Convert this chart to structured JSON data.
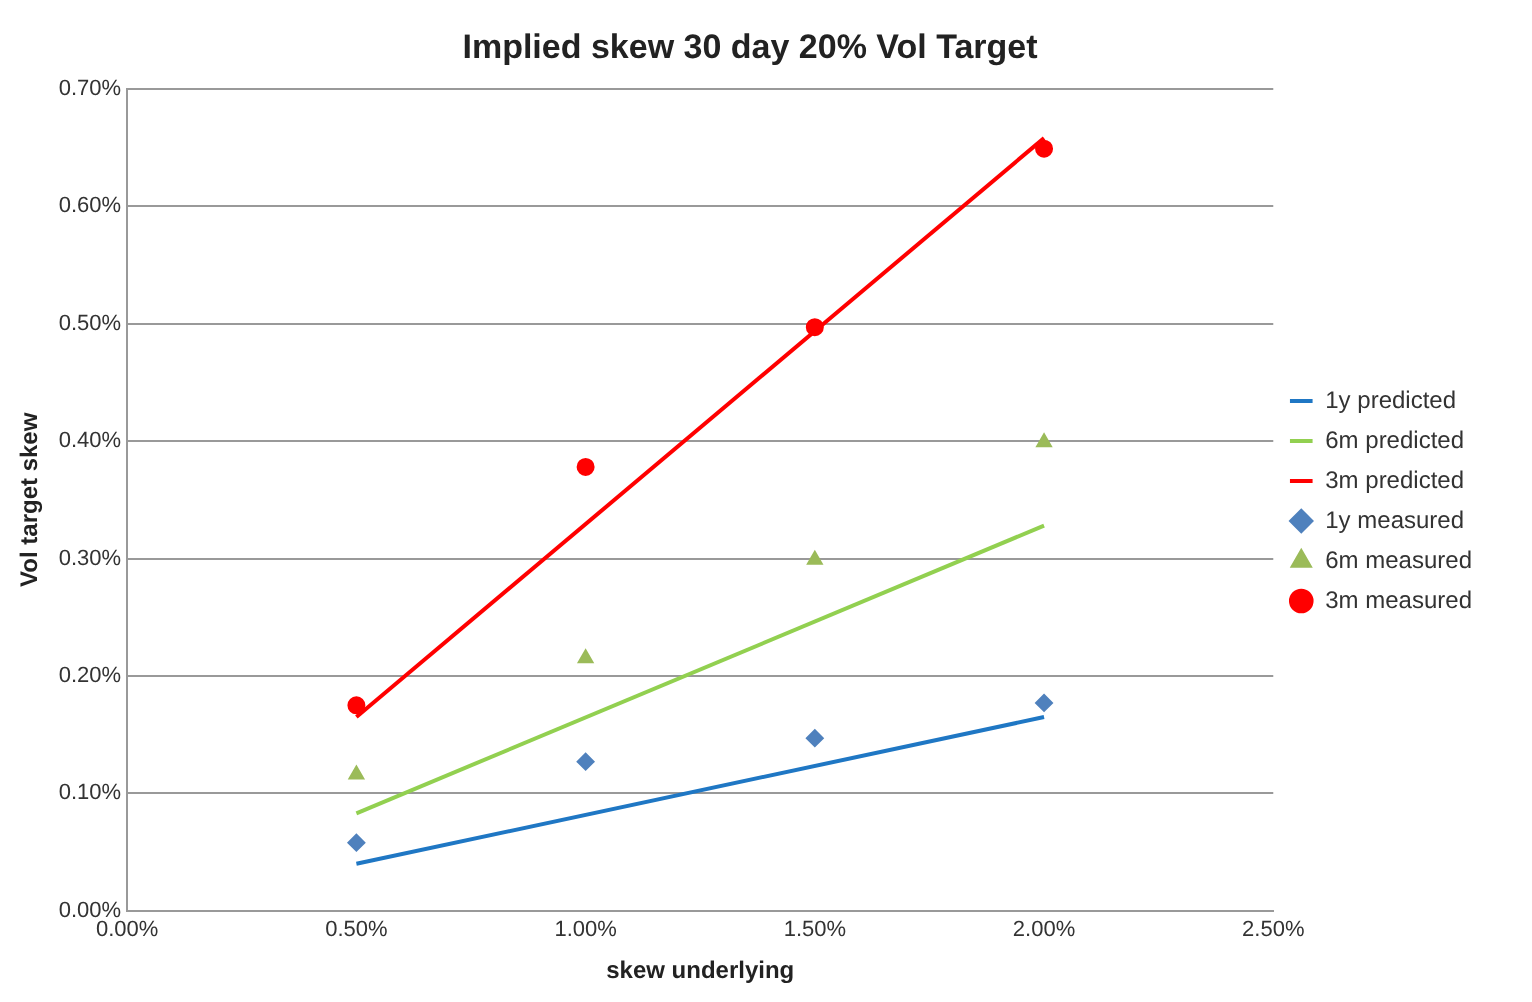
{
  "chart_data": {
    "type": "scatter",
    "title": "Implied skew 30 day 20% Vol Target",
    "xlabel": "skew underlying",
    "ylabel": "Vol target skew",
    "xlim": [
      0,
      2.5
    ],
    "xticks": [
      {
        "value": 0,
        "label": "0.00%"
      },
      {
        "value": 0.5,
        "label": "0.50%"
      },
      {
        "value": 1,
        "label": "1.00%"
      },
      {
        "value": 1.5,
        "label": "1.50%"
      },
      {
        "value": 2,
        "label": "2.00%"
      },
      {
        "value": 2.5,
        "label": "2.50%"
      }
    ],
    "ylim": [
      0,
      0.7
    ],
    "yticks": [
      {
        "value": 0,
        "label": "0.00%"
      },
      {
        "value": 0.1,
        "label": "0.10%"
      },
      {
        "value": 0.2,
        "label": "0.20%"
      },
      {
        "value": 0.3,
        "label": "0.30%"
      },
      {
        "value": 0.4,
        "label": "0.40%"
      },
      {
        "value": 0.5,
        "label": "0.50%"
      },
      {
        "value": 0.6,
        "label": "0.60%"
      },
      {
        "value": 0.7,
        "label": "0.70%"
      }
    ],
    "grid": "y",
    "legend": "right",
    "series": [
      {
        "name": "1y predicted",
        "type": "line",
        "color": "#1f77c4",
        "x": [
          0.5,
          2.0
        ],
        "values": [
          0.04,
          0.165
        ]
      },
      {
        "name": "6m predicted",
        "type": "line",
        "color": "#92d050",
        "x": [
          0.5,
          2.0
        ],
        "values": [
          0.083,
          0.328
        ]
      },
      {
        "name": "3m predicted",
        "type": "line",
        "color": "#ff0000",
        "x": [
          0.5,
          2.0
        ],
        "values": [
          0.165,
          0.658
        ]
      },
      {
        "name": "1y measured",
        "type": "scatter",
        "marker": "diamond",
        "color": "#4f81bd",
        "x": [
          0.5,
          1.0,
          1.5,
          2.0
        ],
        "values": [
          0.058,
          0.127,
          0.147,
          0.177
        ]
      },
      {
        "name": "6m measured",
        "type": "scatter",
        "marker": "triangle",
        "color": "#9bbb59",
        "x": [
          0.5,
          1.0,
          1.5,
          2.0
        ],
        "values": [
          0.116,
          0.215,
          0.299,
          0.399
        ]
      },
      {
        "name": "3m measured",
        "type": "scatter",
        "marker": "circle",
        "color": "#ff0000",
        "x": [
          0.5,
          1.0,
          1.5,
          2.0
        ],
        "values": [
          0.175,
          0.378,
          0.497,
          0.649
        ]
      }
    ]
  }
}
